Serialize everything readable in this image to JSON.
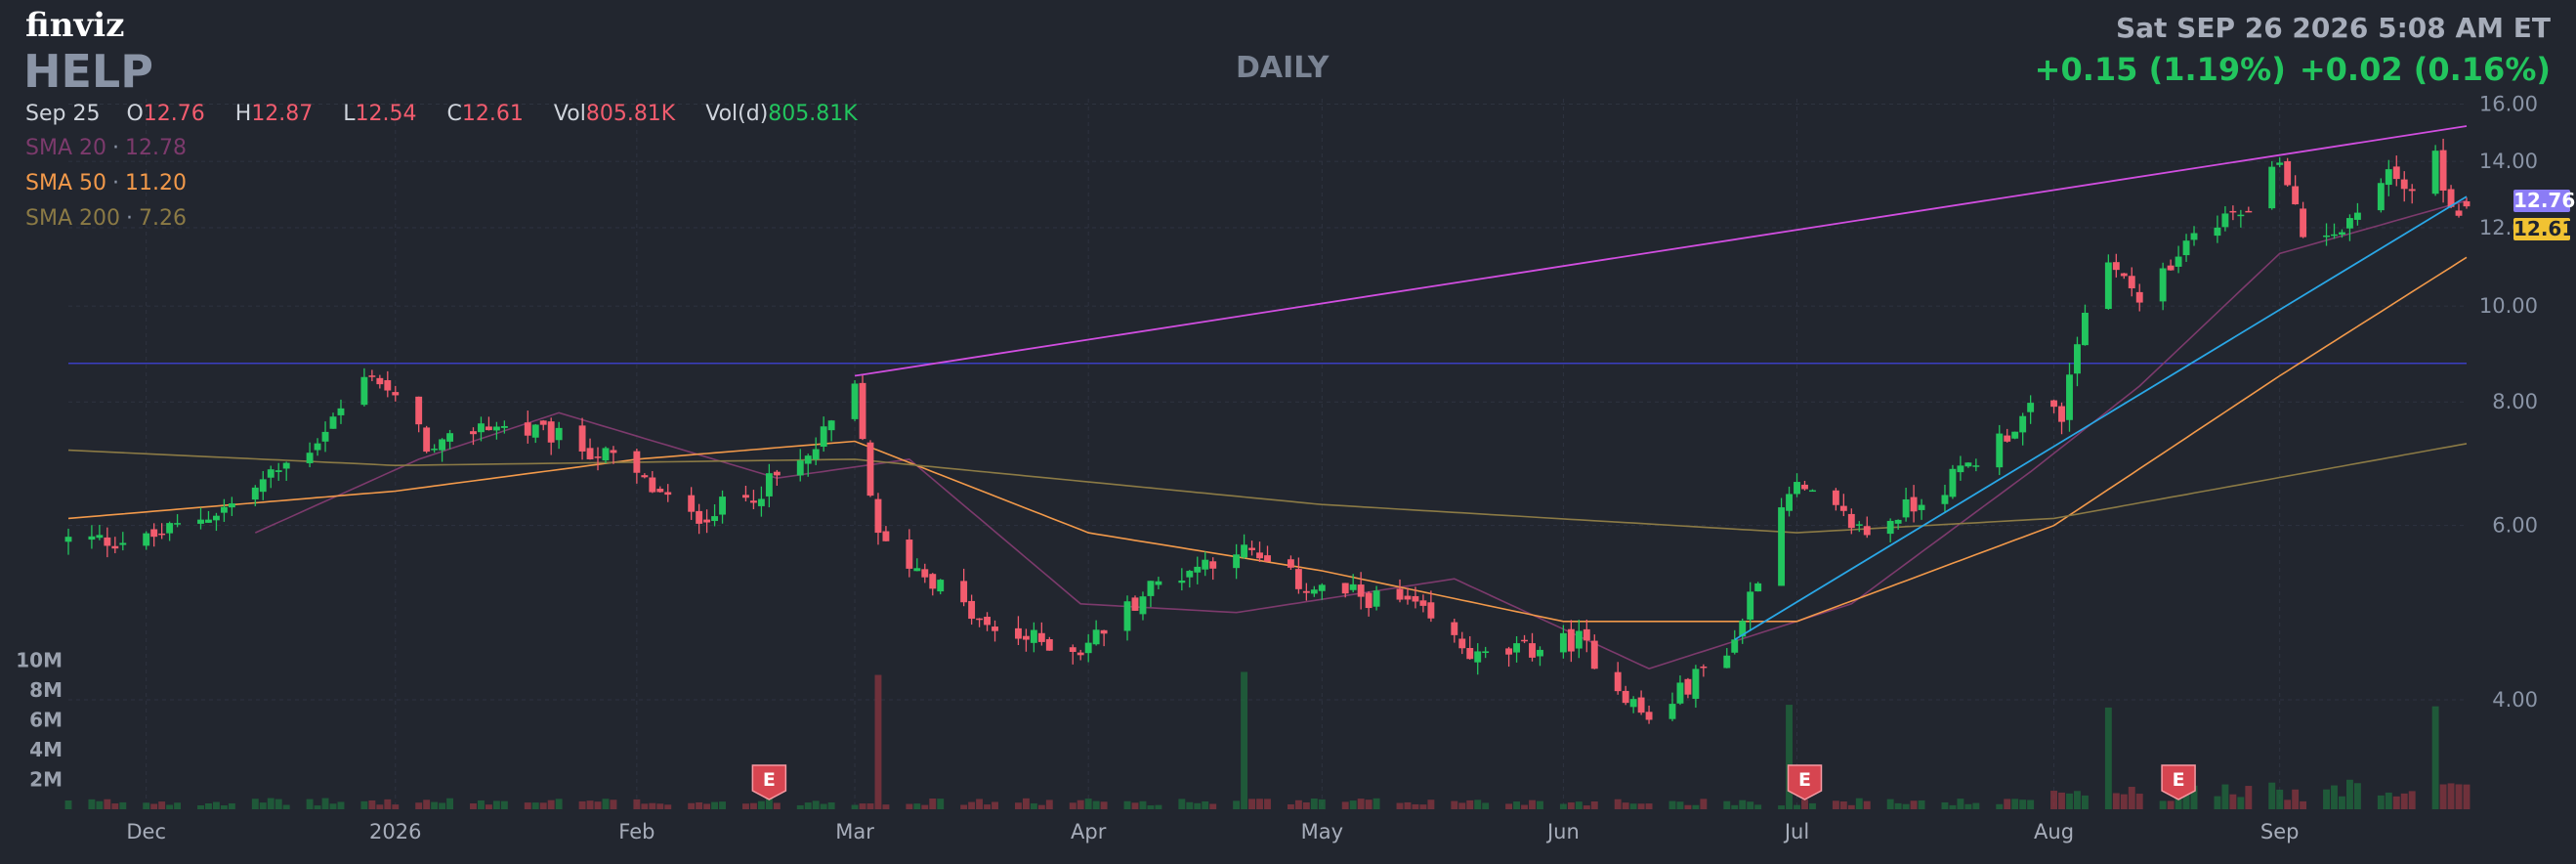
{
  "header": {
    "logo": "finviz",
    "ticker": "HELP",
    "timeframe": "DAILY",
    "datetime": "Sat SEP 26 2026 5:08 AM ET",
    "change": "+0.15 (1.19%)",
    "change_after": "+0.02 (0.16%)",
    "date": "Sep 25",
    "o_label": "O",
    "o": "12.76",
    "h_label": "H",
    "h": "12.87",
    "l_label": "L",
    "l": "12.54",
    "c_label": "C",
    "c": "12.61",
    "vol_label": "Vol",
    "vol": "805.81K",
    "vold_label": "Vol(d)",
    "vold": "805.81K"
  },
  "indicators": [
    {
      "label": "SMA 20",
      "value": "12.78",
      "color": "#7c3a6c"
    },
    {
      "label": "SMA 50",
      "value": "11.20",
      "color": "#f2994a"
    },
    {
      "label": "SMA 200",
      "value": "7.26",
      "color": "#8b7a45"
    }
  ],
  "price_badges": [
    {
      "value": "12.76",
      "bg": "#8b7cf6",
      "fg": "#ffffff"
    },
    {
      "value": "12.61",
      "bg": "#f1c232",
      "fg": "#1f2430"
    }
  ],
  "colors": {
    "up": "#22c55e",
    "down": "#f25c6e",
    "background": "#22262f",
    "grid": "#2e3340",
    "upper_trendline": "#d14ee0",
    "lower_trendline": "#2aa7e6",
    "horizontal_line": "#3b3ec2",
    "earnings_badge": "#d64550"
  },
  "earnings_marker": "E",
  "chart_data": {
    "type": "candlestick",
    "y_scale": "log",
    "ylim": [
      3.1,
      16.2
    ],
    "y_ticks": [
      4,
      6,
      8,
      10,
      12,
      14,
      16
    ],
    "y_tick_labels": [
      "4.00",
      "6.00",
      "8.00",
      "10.00",
      "12.00",
      "14.00",
      "16.00"
    ],
    "volume_ticks": [
      2,
      4,
      6,
      8,
      10
    ],
    "volume_tick_labels": [
      "2M",
      "4M",
      "6M",
      "8M",
      "10M"
    ],
    "x_ticks": [
      {
        "label": "Dec",
        "date": "2025-12-01"
      },
      {
        "label": "2026",
        "date": "2026-01-02"
      },
      {
        "label": "Feb",
        "date": "2026-02-02"
      },
      {
        "label": "Mar",
        "date": "2026-03-02"
      },
      {
        "label": "Apr",
        "date": "2026-04-01"
      },
      {
        "label": "May",
        "date": "2026-05-01"
      },
      {
        "label": "Jun",
        "date": "2026-06-01"
      },
      {
        "label": "Jul",
        "date": "2026-07-01"
      },
      {
        "label": "Aug",
        "date": "2026-08-03"
      },
      {
        "label": "Sep",
        "date": "2026-09-01"
      }
    ],
    "start_date": "2025-11-21",
    "end_date": "2026-09-25",
    "anchors": [
      [
        "2025-11-21",
        5.8
      ],
      [
        "2025-12-01",
        5.8
      ],
      [
        "2025-12-12",
        6.3
      ],
      [
        "2025-12-22",
        7.2
      ],
      [
        "2025-12-30",
        8.6
      ],
      [
        "2026-01-07",
        7.1
      ],
      [
        "2026-01-13",
        7.6
      ],
      [
        "2026-01-22",
        7.4
      ],
      [
        "2026-01-30",
        7.0
      ],
      [
        "2026-02-09",
        6.1
      ],
      [
        "2026-02-16",
        6.4
      ],
      [
        "2026-02-24",
        7.0
      ],
      [
        "2026-03-02",
        8.2
      ],
      [
        "2026-03-05",
        5.8
      ],
      [
        "2026-03-12",
        5.3
      ],
      [
        "2026-03-19",
        4.7
      ],
      [
        "2026-03-31",
        4.5
      ],
      [
        "2026-04-09",
        5.2
      ],
      [
        "2026-04-20",
        5.7
      ],
      [
        "2026-04-29",
        5.2
      ],
      [
        "2026-05-12",
        5.0
      ],
      [
        "2026-05-21",
        4.4
      ],
      [
        "2026-06-03",
        4.6
      ],
      [
        "2026-06-12",
        3.8
      ],
      [
        "2026-06-23",
        4.6
      ],
      [
        "2026-06-30",
        6.6
      ],
      [
        "2026-07-10",
        5.9
      ],
      [
        "2026-07-20",
        6.6
      ],
      [
        "2026-07-31",
        7.8
      ],
      [
        "2026-08-04",
        7.8
      ],
      [
        "2026-08-07",
        10.0
      ],
      [
        "2026-08-11",
        11.1
      ],
      [
        "2026-08-14",
        10.0
      ],
      [
        "2026-08-21",
        11.7
      ],
      [
        "2026-08-27",
        12.5
      ],
      [
        "2026-09-01",
        13.9
      ],
      [
        "2026-09-04",
        11.8
      ],
      [
        "2026-09-10",
        12.2
      ],
      [
        "2026-09-15",
        13.6
      ],
      [
        "2026-09-18",
        13.2
      ],
      [
        "2026-09-21",
        14.4
      ],
      [
        "2026-09-23",
        12.4
      ],
      [
        "2026-09-25",
        12.61
      ]
    ],
    "volume_spikes": [
      {
        "date": "2026-03-05",
        "value": 9.0
      },
      {
        "date": "2026-04-21",
        "value": 9.2
      },
      {
        "date": "2026-06-30",
        "value": 7.0
      },
      {
        "date": "2026-08-10",
        "value": 5.5
      },
      {
        "date": "2026-09-21",
        "value": 5.6
      }
    ],
    "earnings_dates": [
      "2026-02-19",
      "2026-07-02",
      "2026-08-19"
    ],
    "horizontal_line": 8.75,
    "upper_trendline": [
      [
        "2026-03-02",
        8.5
      ],
      [
        "2026-09-25",
        15.2
      ]
    ],
    "lower_trendline": [
      [
        "2026-06-23",
        4.6
      ],
      [
        "2026-09-25",
        12.9
      ]
    ],
    "sma20_anchors": [
      [
        "2025-12-15",
        5.9
      ],
      [
        "2026-01-05",
        7.0
      ],
      [
        "2026-01-23",
        7.8
      ],
      [
        "2026-02-20",
        6.7
      ],
      [
        "2026-03-09",
        7.0
      ],
      [
        "2026-03-31",
        5.0
      ],
      [
        "2026-04-20",
        4.9
      ],
      [
        "2026-05-18",
        5.3
      ],
      [
        "2026-06-12",
        4.3
      ],
      [
        "2026-07-08",
        5.0
      ],
      [
        "2026-07-31",
        6.8
      ],
      [
        "2026-08-14",
        8.3
      ],
      [
        "2026-09-01",
        11.3
      ],
      [
        "2026-09-25",
        12.78
      ]
    ],
    "sma50_anchors": [
      [
        "2025-11-21",
        6.1
      ],
      [
        "2026-01-02",
        6.5
      ],
      [
        "2026-02-02",
        7.0
      ],
      [
        "2026-03-02",
        7.3
      ],
      [
        "2026-04-01",
        5.9
      ],
      [
        "2026-05-01",
        5.4
      ],
      [
        "2026-06-01",
        4.8
      ],
      [
        "2026-07-01",
        4.8
      ],
      [
        "2026-08-03",
        6.0
      ],
      [
        "2026-09-01",
        8.5
      ],
      [
        "2026-09-25",
        11.2
      ]
    ],
    "sma200_anchors": [
      [
        "2025-11-21",
        7.15
      ],
      [
        "2026-01-02",
        6.9
      ],
      [
        "2026-03-02",
        7.0
      ],
      [
        "2026-05-01",
        6.3
      ],
      [
        "2026-07-01",
        5.9
      ],
      [
        "2026-08-03",
        6.1
      ],
      [
        "2026-09-25",
        7.26
      ]
    ]
  }
}
